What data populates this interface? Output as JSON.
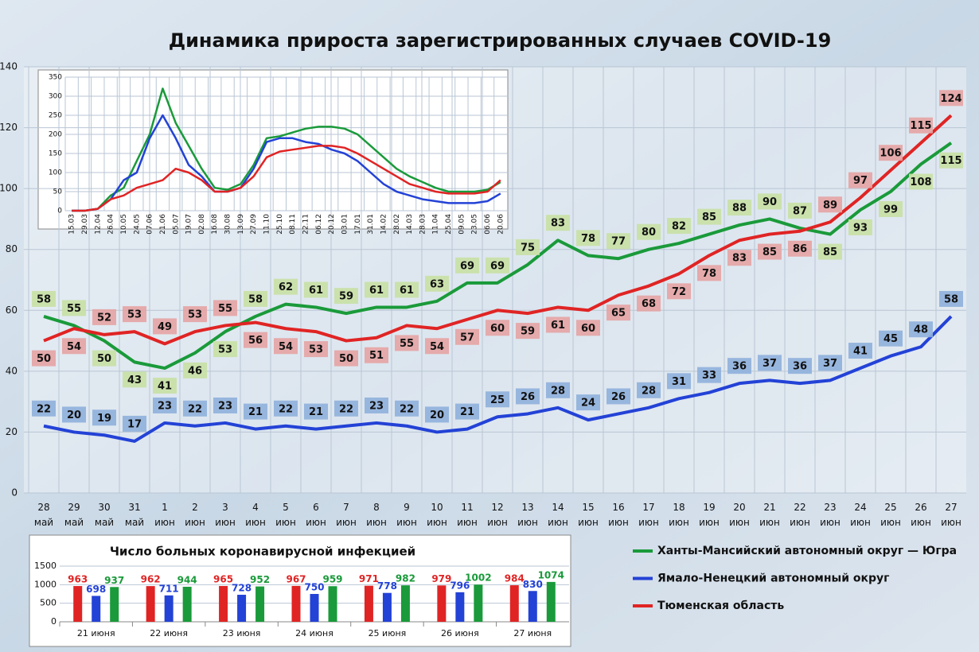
{
  "chart_data": [
    {
      "type": "line",
      "title": "Динамика прироста зарегистрированных случаев COVID-19",
      "categories": [
        "28 май",
        "29 май",
        "30 май",
        "31 май",
        "1 июн",
        "2 июн",
        "3 июн",
        "4 июн",
        "5 июн",
        "6 июн",
        "7 июн",
        "8 июн",
        "9 июн",
        "10 июн",
        "11 июн",
        "12 июн",
        "13 июн",
        "14 июн",
        "15 июн",
        "16 июн",
        "17 июн",
        "18 июн",
        "19 июн",
        "20 июн",
        "21 июн",
        "22 июн",
        "23 июн",
        "24 июн",
        "25 июн",
        "26 июн",
        "27 июн"
      ],
      "series": [
        {
          "name": "Ханты-Мансийский автономный округ — Югра",
          "color": "#1a9a3a",
          "values": [
            58,
            55,
            50,
            43,
            41,
            46,
            53,
            58,
            62,
            61,
            59,
            61,
            61,
            63,
            69,
            69,
            75,
            83,
            78,
            77,
            80,
            82,
            85,
            88,
            90,
            87,
            85,
            93,
            99,
            108,
            115
          ]
        },
        {
          "name": "Ямало-Ненецкий автономный округ",
          "color": "#2342d6",
          "values": [
            22,
            20,
            19,
            17,
            23,
            22,
            23,
            21,
            22,
            21,
            22,
            23,
            22,
            20,
            21,
            25,
            26,
            28,
            24,
            26,
            28,
            31,
            33,
            36,
            37,
            36,
            37,
            41,
            45,
            48,
            58
          ]
        },
        {
          "name": "Тюменская область",
          "color": "#e02424",
          "values": [
            50,
            54,
            52,
            53,
            49,
            53,
            55,
            56,
            54,
            53,
            50,
            51,
            55,
            54,
            57,
            60,
            59,
            61,
            60,
            65,
            68,
            72,
            78,
            83,
            85,
            86,
            89,
            97,
            106,
            115,
            124
          ]
        }
      ],
      "ylim": [
        0,
        140
      ],
      "yticks": [
        0,
        20,
        40,
        60,
        80,
        100,
        120,
        140
      ],
      "grid": true
    },
    {
      "type": "line",
      "categories": [
        "15.03",
        "29.03",
        "12.04",
        "26.04",
        "10.05",
        "24.05",
        "07.06",
        "21.06",
        "05.07",
        "19.07",
        "02.08",
        "16.08",
        "30.08",
        "13.09",
        "27.09",
        "11.10",
        "25.10",
        "08.11",
        "22.11",
        "06.12",
        "20.12",
        "03.01",
        "17.01",
        "31.01",
        "14.02",
        "28.02",
        "14.03",
        "28.03",
        "11.04",
        "25.04",
        "09.05",
        "23.05",
        "06.06",
        "20.06"
      ],
      "series": [
        {
          "color": "#1a9a3a",
          "values": [
            0,
            0,
            5,
            40,
            60,
            130,
            200,
            320,
            230,
            170,
            110,
            60,
            55,
            70,
            120,
            190,
            195,
            205,
            215,
            220,
            220,
            215,
            200,
            170,
            140,
            110,
            90,
            75,
            60,
            50,
            50,
            50,
            55,
            75
          ]
        },
        {
          "color": "#2342d6",
          "values": [
            0,
            0,
            5,
            30,
            80,
            100,
            190,
            250,
            190,
            120,
            90,
            50,
            50,
            60,
            110,
            180,
            190,
            190,
            180,
            175,
            160,
            150,
            130,
            100,
            70,
            50,
            40,
            30,
            25,
            20,
            20,
            20,
            25,
            45
          ]
        },
        {
          "color": "#e02424",
          "values": [
            0,
            0,
            5,
            30,
            40,
            60,
            70,
            80,
            110,
            100,
            80,
            50,
            50,
            60,
            90,
            140,
            155,
            160,
            165,
            170,
            170,
            165,
            150,
            130,
            110,
            90,
            70,
            60,
            50,
            45,
            45,
            45,
            50,
            80
          ]
        }
      ],
      "ylim": [
        0,
        350
      ],
      "yticks": [
        0,
        50,
        100,
        150,
        200,
        250,
        300,
        350
      ],
      "grid": true
    },
    {
      "type": "bar",
      "title": "Число больных коронавирусной инфекцией",
      "categories": [
        "21 июня",
        "22 июня",
        "23 июня",
        "24 июня",
        "25 июня",
        "26 июня",
        "27 июня"
      ],
      "series": [
        {
          "color": "#e02424",
          "values": [
            963,
            962,
            965,
            967,
            971,
            979,
            984
          ]
        },
        {
          "color": "#2342d6",
          "values": [
            698,
            711,
            728,
            750,
            778,
            796,
            830
          ]
        },
        {
          "color": "#1a9a3a",
          "values": [
            937,
            944,
            952,
            959,
            982,
            1002,
            1074
          ]
        }
      ],
      "ylim": [
        0,
        1500
      ],
      "yticks": [
        0,
        500,
        1000,
        1500
      ],
      "grid": true
    }
  ]
}
